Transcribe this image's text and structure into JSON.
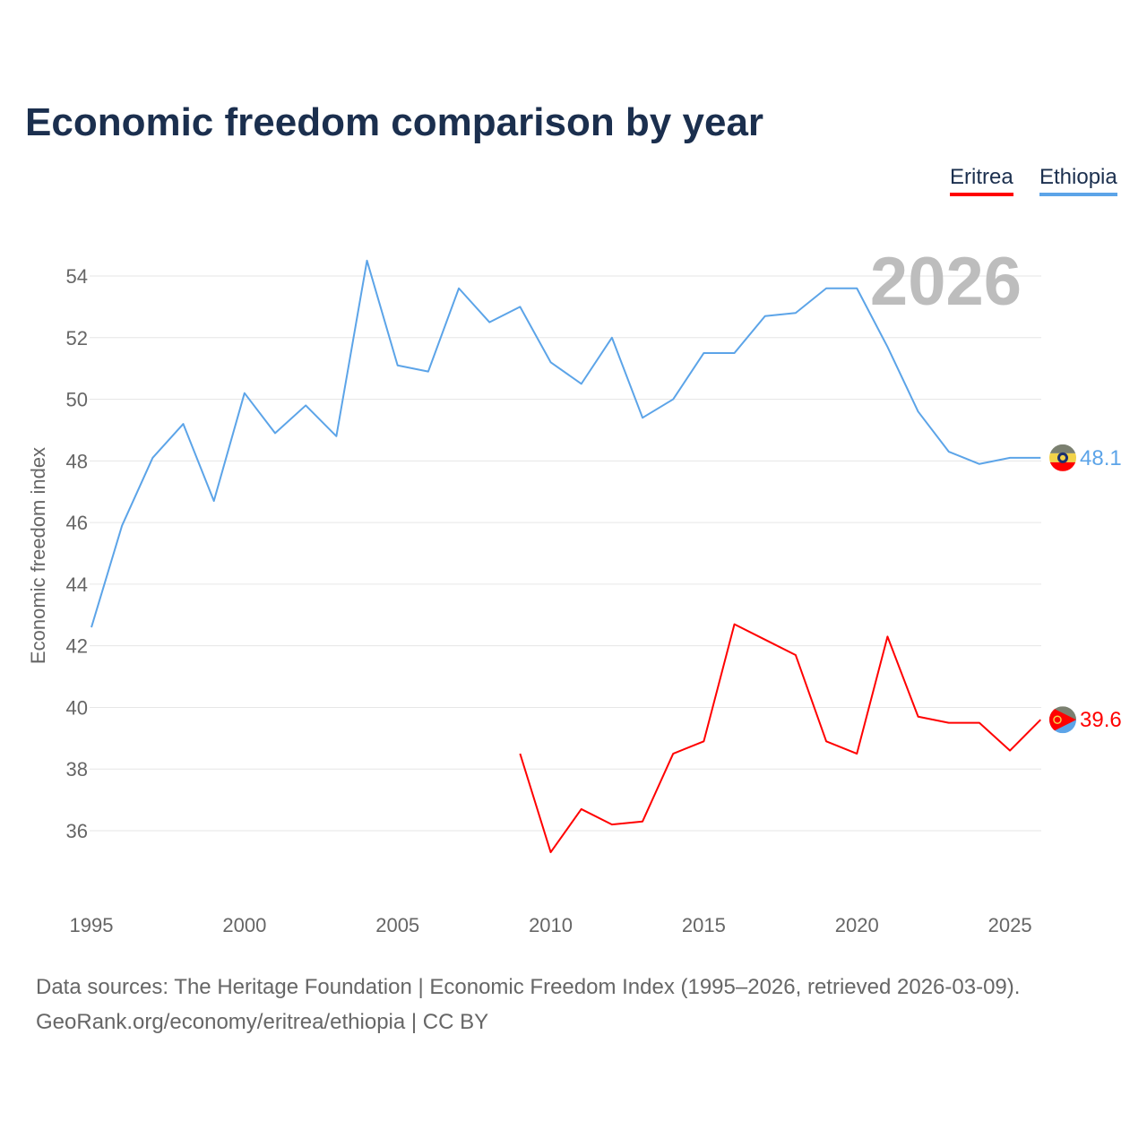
{
  "title": "Economic freedom comparison by year",
  "footer": {
    "line1": "Data sources: The Heritage Foundation | Economic Freedom Index (1995–2026, retrieved 2026-03-09).",
    "line2": "GeoRank.org/economy/eritrea/ethiopia | CC BY"
  },
  "chart_data": {
    "type": "line",
    "title": "Economic freedom comparison by year",
    "ylabel": "Economic freedom index",
    "xlabel": "",
    "year_label": "2026",
    "xlim": [
      1995,
      2026
    ],
    "ylim": [
      34,
      55
    ],
    "xticks": [
      1995,
      2000,
      2005,
      2010,
      2015,
      2020,
      2025
    ],
    "yticks": [
      36,
      38,
      40,
      42,
      44,
      46,
      48,
      50,
      52,
      54
    ],
    "grid": true,
    "legend_position": "top-right",
    "series": [
      {
        "name": "Eritrea",
        "color": "#ff0000",
        "end_label": "39.6",
        "flag": "eritrea-flag",
        "x": [
          2009,
          2010,
          2011,
          2012,
          2013,
          2014,
          2015,
          2016,
          2017,
          2018,
          2019,
          2020,
          2021,
          2022,
          2023,
          2024,
          2025,
          2026
        ],
        "y": [
          38.5,
          35.3,
          36.7,
          36.2,
          36.3,
          38.5,
          38.9,
          42.7,
          42.2,
          41.7,
          38.9,
          38.5,
          42.3,
          39.7,
          39.5,
          39.5,
          38.6,
          39.6
        ]
      },
      {
        "name": "Ethiopia",
        "color": "#5ca4e8",
        "end_label": "48.1",
        "flag": "ethiopia-flag",
        "x": [
          1995,
          1996,
          1997,
          1998,
          1999,
          2000,
          2001,
          2002,
          2003,
          2004,
          2005,
          2006,
          2007,
          2008,
          2009,
          2010,
          2011,
          2012,
          2013,
          2014,
          2015,
          2016,
          2017,
          2018,
          2019,
          2020,
          2021,
          2022,
          2023,
          2024,
          2025,
          2026
        ],
        "y": [
          42.6,
          45.9,
          48.1,
          49.2,
          46.7,
          50.2,
          48.9,
          49.8,
          48.8,
          54.5,
          51.1,
          50.9,
          53.6,
          52.5,
          53.0,
          51.2,
          50.5,
          52.0,
          49.4,
          50.0,
          51.5,
          51.5,
          52.7,
          52.8,
          53.6,
          53.6,
          51.7,
          49.6,
          48.3,
          47.9,
          48.1,
          48.1
        ]
      }
    ]
  }
}
